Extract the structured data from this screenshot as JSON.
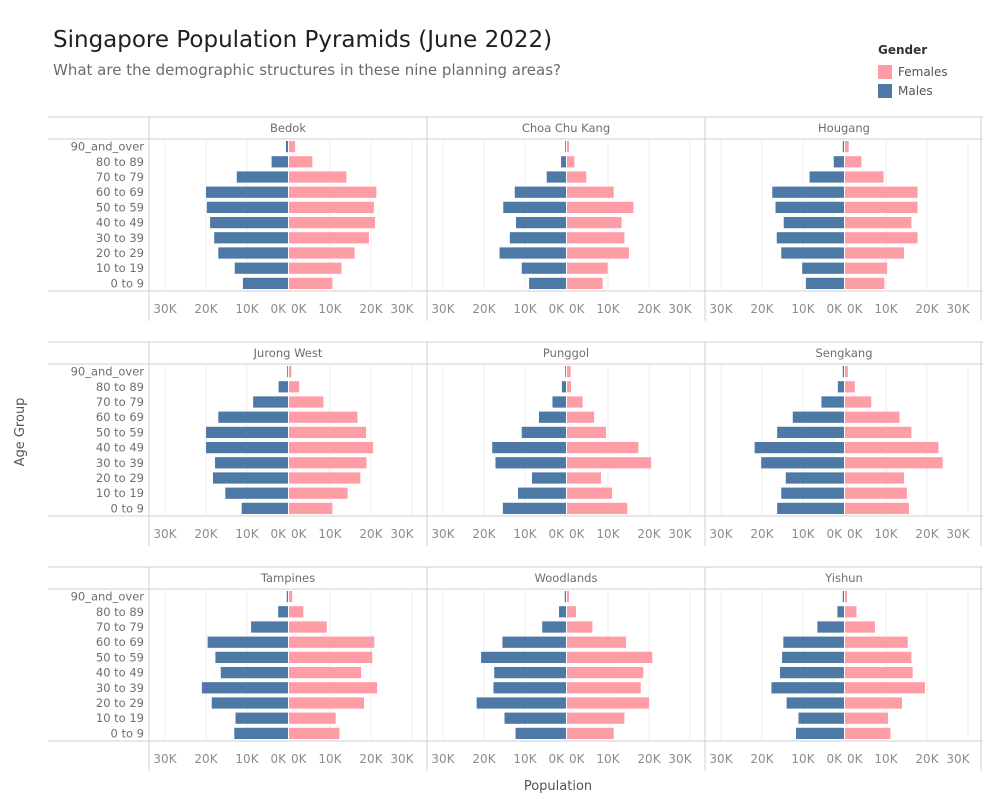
{
  "header": {
    "title": "Singapore Population Pyramids (June 2022)",
    "subtitle": "What are the demographic structures in these nine planning areas?"
  },
  "legend": {
    "title": "Gender",
    "items": [
      {
        "label": "Females",
        "color": "#ff9da7"
      },
      {
        "label": "Males",
        "color": "#4e79a7"
      }
    ]
  },
  "chart_data": {
    "type": "bar",
    "orientation": "horizontal",
    "layout": "small multiples 3x3, population pyramid (males left, females right)",
    "ylabel": "Age Group",
    "xlabel": "Population",
    "age_groups": [
      "90_and_over",
      "80 to 89",
      "70 to 79",
      "60 to 69",
      "50 to 59",
      "40 to 49",
      "30 to 39",
      "20 to 29",
      "10 to 19",
      "0 to 9"
    ],
    "x_ticks_left": [
      "30K",
      "20K",
      "10K",
      "0K"
    ],
    "x_ticks_right": [
      "0K",
      "10K",
      "20K",
      "30K"
    ],
    "xlim": [
      0,
      30000
    ],
    "colors": {
      "Females": "#ff9da7",
      "Males": "#4e79a7"
    },
    "panels": [
      {
        "area": "Bedok",
        "males": [
          500,
          4000,
          12500,
          20000,
          19800,
          19000,
          18000,
          17000,
          13000,
          11000
        ],
        "females": [
          1500,
          5700,
          14000,
          21300,
          20700,
          21000,
          19500,
          16000,
          12800,
          10600
        ]
      },
      {
        "area": "Choa Chu Kang",
        "males": [
          200,
          1200,
          4700,
          12500,
          15300,
          12200,
          13700,
          16200,
          10800,
          9000
        ],
        "females": [
          500,
          1800,
          4700,
          11400,
          16200,
          13300,
          14000,
          15100,
          9900,
          8700
        ]
      },
      {
        "area": "Hougang",
        "males": [
          300,
          2500,
          8400,
          17500,
          16700,
          14700,
          16400,
          15300,
          10200,
          9300
        ],
        "females": [
          900,
          4000,
          9400,
          17700,
          17700,
          16200,
          17700,
          14400,
          10300,
          9600
        ]
      },
      {
        "area": "Jurong West",
        "males": [
          200,
          2300,
          8500,
          17000,
          20000,
          20000,
          17800,
          18300,
          15300,
          11300
        ],
        "females": [
          600,
          2500,
          8400,
          16700,
          18800,
          20500,
          18900,
          17400,
          14300,
          10600
        ]
      },
      {
        "area": "Punggol",
        "males": [
          200,
          1000,
          3300,
          6600,
          10800,
          18000,
          17200,
          8300,
          11700,
          15400
        ],
        "females": [
          900,
          1000,
          3800,
          6600,
          9500,
          17400,
          20500,
          8300,
          11000,
          14700
        ]
      },
      {
        "area": "Sengkang",
        "males": [
          300,
          1500,
          5500,
          12500,
          16300,
          21800,
          20200,
          14200,
          15300,
          16300
        ],
        "females": [
          700,
          2400,
          6400,
          13300,
          16200,
          22800,
          23800,
          14400,
          15100,
          15600
        ]
      },
      {
        "area": "Tampines",
        "males": [
          300,
          2400,
          9000,
          19600,
          17700,
          16400,
          21000,
          18600,
          12800,
          13100
        ],
        "females": [
          800,
          3500,
          9200,
          20800,
          20300,
          17600,
          21500,
          18300,
          11400,
          12300
        ]
      },
      {
        "area": "Woodlands",
        "males": [
          300,
          1700,
          5800,
          15500,
          20700,
          17500,
          17700,
          21800,
          15000,
          12300
        ],
        "females": [
          500,
          2200,
          6200,
          14400,
          20800,
          18600,
          18000,
          20000,
          14000,
          11400
        ]
      },
      {
        "area": "Yishun",
        "males": [
          300,
          1600,
          6500,
          14800,
          15100,
          15600,
          17700,
          14000,
          11100,
          11700
        ],
        "females": [
          500,
          2800,
          7300,
          15300,
          16200,
          16500,
          19500,
          13900,
          10500,
          11100
        ]
      }
    ]
  }
}
